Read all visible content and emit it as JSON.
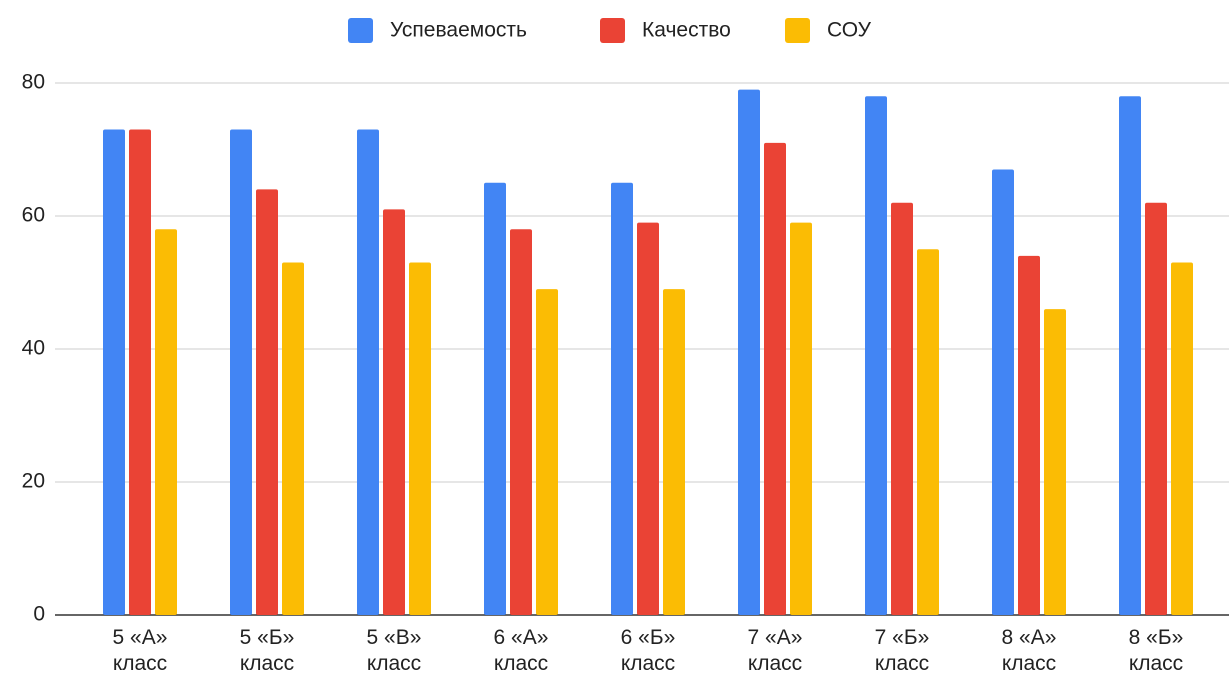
{
  "chart_data": {
    "type": "bar",
    "categories": [
      "5 «А» класс",
      "5 «Б» класс",
      "5 «В» класс",
      "6 «А» класс",
      "6 «Б» класс",
      "7 «А» класс",
      "7 «Б» класс",
      "8 «А» класс",
      "8 «Б» класс"
    ],
    "series": [
      {
        "name": "Успеваемость",
        "color": "#4285f4",
        "values": [
          73,
          73,
          73,
          65,
          65,
          79,
          78,
          67,
          78
        ]
      },
      {
        "name": "Качество",
        "color": "#ea4335",
        "values": [
          73,
          64,
          61,
          58,
          59,
          71,
          62,
          54,
          62
        ]
      },
      {
        "name": "СОУ",
        "color": "#fbbc04",
        "values": [
          58,
          53,
          53,
          49,
          49,
          59,
          55,
          46,
          53
        ]
      }
    ],
    "ylim": [
      0,
      80
    ],
    "yticks": [
      0,
      20,
      40,
      60,
      80
    ],
    "grid": true,
    "legend": "top"
  }
}
